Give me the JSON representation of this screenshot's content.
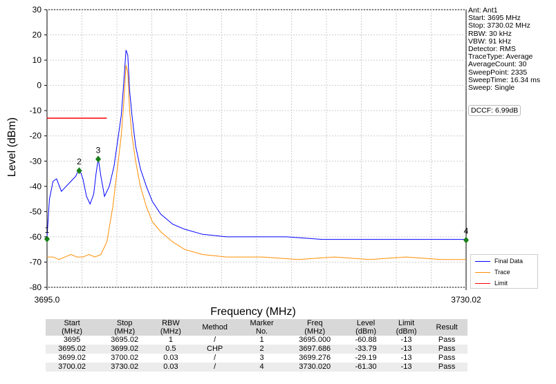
{
  "chart_data": {
    "type": "line",
    "xlabel": "Frequency (MHz)",
    "ylabel": "Level (dBm)",
    "xlim": [
      3695.0,
      3730.02
    ],
    "ylim": [
      -80,
      30
    ],
    "x_tick_labels": [
      "3695.0",
      "3730.02"
    ],
    "y_ticks": [
      30,
      20,
      10,
      0,
      -10,
      -20,
      -30,
      -40,
      -50,
      -60,
      -70,
      -80
    ],
    "grid": true,
    "legend_position": "bottom-right",
    "series": [
      {
        "name": "Final Data",
        "color": "#0000ff",
        "points": [
          [
            3695.0,
            -60
          ],
          [
            3695.2,
            -45
          ],
          [
            3695.5,
            -38
          ],
          [
            3695.8,
            -37
          ],
          [
            3696.2,
            -42
          ],
          [
            3696.6,
            -40
          ],
          [
            3697.0,
            -38
          ],
          [
            3697.4,
            -36
          ],
          [
            3697.7,
            -33
          ],
          [
            3698.0,
            -37
          ],
          [
            3698.3,
            -44
          ],
          [
            3698.6,
            -47
          ],
          [
            3698.9,
            -43
          ],
          [
            3699.1,
            -35
          ],
          [
            3699.28,
            -29
          ],
          [
            3699.5,
            -36
          ],
          [
            3699.8,
            -44
          ],
          [
            3700.2,
            -40
          ],
          [
            3700.6,
            -32
          ],
          [
            3700.9,
            -22
          ],
          [
            3701.2,
            -12
          ],
          [
            3701.4,
            0
          ],
          [
            3701.6,
            14
          ],
          [
            3701.75,
            12
          ],
          [
            3701.9,
            -2
          ],
          [
            3702.1,
            -12
          ],
          [
            3702.4,
            -24
          ],
          [
            3702.8,
            -33
          ],
          [
            3703.3,
            -40
          ],
          [
            3703.8,
            -46
          ],
          [
            3704.5,
            -51
          ],
          [
            3705.5,
            -55
          ],
          [
            3706.5,
            -57
          ],
          [
            3708.0,
            -59
          ],
          [
            3710.0,
            -60
          ],
          [
            3712.0,
            -60
          ],
          [
            3715.0,
            -60
          ],
          [
            3718.0,
            -61
          ],
          [
            3721.0,
            -61
          ],
          [
            3724.0,
            -61
          ],
          [
            3727.0,
            -61
          ],
          [
            3729.0,
            -61
          ],
          [
            3730.02,
            -61
          ]
        ]
      },
      {
        "name": "Trace",
        "color": "#ff8c00",
        "points": [
          [
            3695.0,
            -68
          ],
          [
            3695.5,
            -68
          ],
          [
            3696.0,
            -69
          ],
          [
            3696.5,
            -68
          ],
          [
            3697.0,
            -67
          ],
          [
            3697.5,
            -68
          ],
          [
            3698.0,
            -68
          ],
          [
            3698.5,
            -67
          ],
          [
            3699.0,
            -68
          ],
          [
            3699.5,
            -67
          ],
          [
            3700.0,
            -62
          ],
          [
            3700.5,
            -48
          ],
          [
            3700.9,
            -32
          ],
          [
            3701.2,
            -20
          ],
          [
            3701.4,
            -8
          ],
          [
            3701.6,
            8
          ],
          [
            3701.75,
            5
          ],
          [
            3701.9,
            -10
          ],
          [
            3702.1,
            -20
          ],
          [
            3702.4,
            -30
          ],
          [
            3702.8,
            -40
          ],
          [
            3703.3,
            -48
          ],
          [
            3703.8,
            -54
          ],
          [
            3704.5,
            -58
          ],
          [
            3705.5,
            -62
          ],
          [
            3706.5,
            -65
          ],
          [
            3708.0,
            -67
          ],
          [
            3710.0,
            -68
          ],
          [
            3713.0,
            -68
          ],
          [
            3716.0,
            -69
          ],
          [
            3719.0,
            -68
          ],
          [
            3722.0,
            -69
          ],
          [
            3725.0,
            -68
          ],
          [
            3728.0,
            -69
          ],
          [
            3730.02,
            -69
          ]
        ]
      },
      {
        "name": "Limit",
        "color": "#ff0000",
        "points": [
          [
            3695.0,
            -13
          ],
          [
            3700.0,
            -13
          ]
        ]
      }
    ],
    "markers": [
      {
        "label": "1",
        "x": 3695.0,
        "y": -60.88
      },
      {
        "label": "2",
        "x": 3697.686,
        "y": -33.79
      },
      {
        "label": "3",
        "x": 3699.276,
        "y": -29.19
      },
      {
        "label": "4",
        "x": 3730.02,
        "y": -61.3
      }
    ]
  },
  "info": [
    "Ant: Ant1",
    "Start: 3695 MHz",
    "Stop: 3730.02 MHz",
    "RBW: 30 kHz",
    "VBW: 91 kHz",
    "Detector: RMS",
    "TraceType: Average",
    "AverageCount: 30",
    "SweepPoint: 2335",
    "SweepTime: 16.34 ms",
    "Sweep: Single"
  ],
  "dccf": "DCCF: 6.99dB",
  "table": {
    "headers": [
      "Start\n(MHz)",
      "Stop\n(MHz)",
      "RBW\n(MHz)",
      "Method",
      "Marker\nNo.",
      "Freq\n(MHz)",
      "Level\n(dBm)",
      "Limit\n(dBm)",
      "Result"
    ],
    "rows": [
      [
        "3695",
        "3695.02",
        "1",
        "/",
        "1",
        "3695.000",
        "-60.88",
        "-13",
        "Pass"
      ],
      [
        "3695.02",
        "3699.02",
        "0.5",
        "CHP",
        "2",
        "3697.686",
        "-33.79",
        "-13",
        "Pass"
      ],
      [
        "3699.02",
        "3700.02",
        "0.03",
        "/",
        "3",
        "3699.276",
        "-29.19",
        "-13",
        "Pass"
      ],
      [
        "3700.02",
        "3730.02",
        "0.03",
        "/",
        "4",
        "3730.020",
        "-61.30",
        "-13",
        "Pass"
      ]
    ]
  }
}
